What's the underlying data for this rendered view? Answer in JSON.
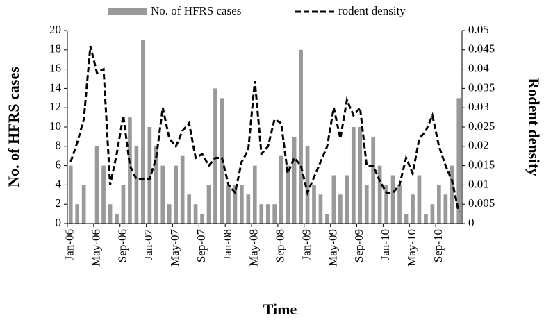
{
  "chart_data": {
    "type": "bar_line",
    "xlabel": "Time",
    "ylabel": "No. of HFRS cases",
    "y2label": "Rodent density",
    "categories": [
      "Jan-06",
      null,
      null,
      null,
      "May-06",
      null,
      null,
      null,
      "Sep-06",
      null,
      null,
      null,
      "Jan-07",
      null,
      null,
      null,
      "May-07",
      null,
      null,
      null,
      "Sep-07",
      null,
      null,
      null,
      "Jan-08",
      null,
      null,
      null,
      "May-08",
      null,
      null,
      null,
      "Sep-08",
      null,
      null,
      null,
      "Jan-09",
      null,
      null,
      null,
      "May-09",
      null,
      null,
      null,
      "Sep-09",
      null,
      null,
      null,
      "Jan-10",
      null,
      null,
      null,
      "May-10",
      null,
      null,
      null,
      "Sep-10",
      null,
      null,
      null
    ],
    "series": [
      {
        "name": "No. of HFRS cases",
        "kind": "bar",
        "color": "#999999",
        "values": [
          6,
          2,
          4,
          0,
          8,
          6,
          2,
          1,
          4,
          11,
          8,
          19,
          10,
          8,
          6,
          2,
          6,
          7,
          3,
          2,
          1,
          4,
          14,
          13,
          4,
          4,
          4,
          3,
          6,
          2,
          2,
          2,
          7,
          6,
          9,
          18,
          8,
          4,
          3,
          1,
          5,
          3,
          5,
          10,
          10,
          4,
          9,
          6,
          4,
          5,
          4,
          1,
          3,
          5,
          1,
          2,
          4,
          3,
          6,
          13
        ]
      },
      {
        "name": "rodent density",
        "kind": "line",
        "axis": "y2",
        "color": "#000000",
        "values": [
          0.016,
          0.021,
          0.027,
          0.046,
          0.039,
          0.04,
          0.01,
          0.018,
          0.028,
          0.015,
          0.0115,
          0.0115,
          0.0115,
          0.017,
          0.03,
          0.022,
          0.02,
          0.024,
          0.026,
          0.017,
          0.018,
          0.015,
          0.017,
          0.017,
          0.01,
          0.008,
          0.016,
          0.019,
          0.037,
          0.018,
          0.02,
          0.027,
          0.026,
          0.013,
          0.017,
          0.015,
          0.008,
          0.012,
          0.016,
          0.02,
          0.03,
          0.022,
          0.032,
          0.028,
          0.03,
          0.015,
          0.015,
          0.011,
          0.008,
          0.008,
          0.01,
          0.017,
          0.013,
          0.022,
          0.024,
          0.028,
          0.02,
          0.015,
          0.011,
          0.003
        ]
      }
    ],
    "ylim": [
      0,
      20
    ],
    "yticks": [
      0,
      2,
      4,
      6,
      8,
      10,
      12,
      14,
      16,
      18,
      20
    ],
    "y2lim": [
      0,
      0.05
    ],
    "y2ticks": [
      0,
      0.005,
      0.01,
      0.015,
      0.02,
      0.025,
      0.03,
      0.035,
      0.04,
      0.045,
      0.05
    ]
  }
}
